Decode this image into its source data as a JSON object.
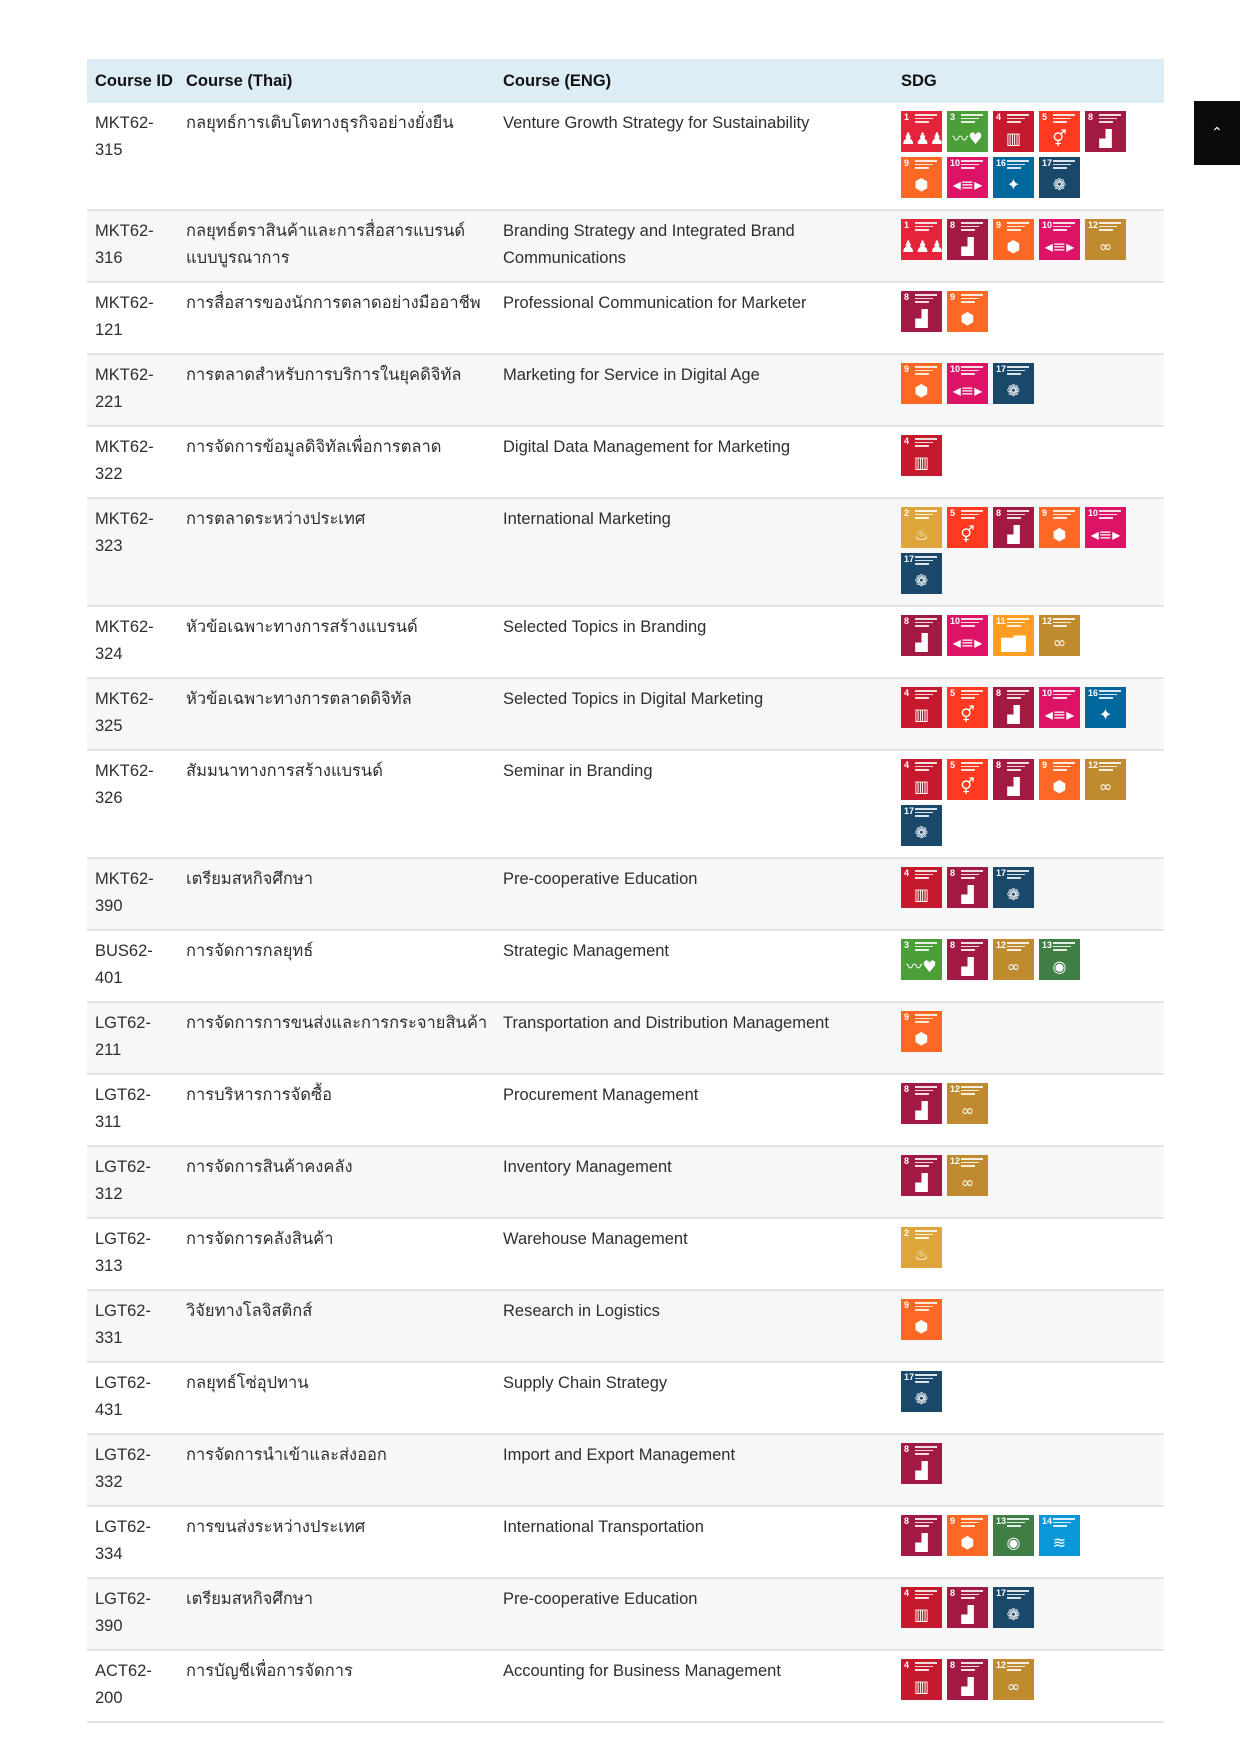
{
  "header": {
    "course_id": "Course ID",
    "course_thai": "Course (Thai)",
    "course_eng": "Course (ENG)",
    "sdg": "SDG"
  },
  "scroll_top": {
    "icon": "chevron-up-icon",
    "glyph": "⌃"
  },
  "sdg_colors": {
    "1": "#e5243b",
    "2": "#dda63a",
    "3": "#4c9f38",
    "4": "#c5192d",
    "5": "#ff3a21",
    "8": "#a21942",
    "9": "#fd6925",
    "10": "#dd1367",
    "11": "#fd9d24",
    "12": "#bf8b2e",
    "13": "#3f7e44",
    "14": "#0a97d9",
    "16": "#00689d",
    "17": "#19486a"
  },
  "sdg_icons": {
    "1": "no-poverty-icon",
    "2": "zero-hunger-icon",
    "3": "good-health-icon",
    "4": "quality-education-icon",
    "5": "gender-equality-icon",
    "8": "decent-work-icon",
    "9": "industry-innovation-icon",
    "10": "reduced-inequalities-icon",
    "11": "sustainable-cities-icon",
    "12": "responsible-consumption-icon",
    "13": "climate-action-icon",
    "14": "life-below-water-icon",
    "16": "peace-justice-icon",
    "17": "partnerships-icon"
  },
  "sdg_glyphs": {
    "1": "♟♟♟",
    "2": "♨",
    "3": "〰♥",
    "4": "▥",
    "5": "⚥",
    "8": "▟",
    "9": "⬢",
    "10": "◂≡▸",
    "11": "▆▇",
    "12": "∞",
    "13": "◉",
    "14": "≋",
    "16": "✦",
    "17": "❁"
  },
  "rows": [
    {
      "id": "MKT62-315",
      "thai": "กลยุทธ์การเติบโตทางธุรกิจอย่างยั่งยืน",
      "eng": "Venture Growth Strategy for Sustainability",
      "sdgs": [
        "1",
        "3",
        "4",
        "5",
        "8",
        "9",
        "10",
        "16",
        "17"
      ]
    },
    {
      "id": "MKT62-316",
      "thai": "กลยุทธ์ตราสินค้าและการสื่อสารแบรนด์แบบบูรณาการ",
      "eng": "Branding Strategy and Integrated Brand Communications",
      "sdgs": [
        "1",
        "8",
        "9",
        "10",
        "12"
      ]
    },
    {
      "id": "MKT62-121",
      "thai": "การสื่อสารของนักการตลาดอย่างมืออาชีพ",
      "eng": "Professional Communication for Marketer",
      "sdgs": [
        "8",
        "9"
      ]
    },
    {
      "id": "MKT62-221",
      "thai": "การตลาดสำหรับการบริการในยุคดิจิทัล",
      "eng": "Marketing for Service in Digital Age",
      "sdgs": [
        "9",
        "10",
        "17"
      ]
    },
    {
      "id": "MKT62-322",
      "thai": "การจัดการข้อมูลดิจิทัลเพื่อการตลาด",
      "eng": "Digital Data Management for Marketing",
      "sdgs": [
        "4"
      ]
    },
    {
      "id": "MKT62-323",
      "thai": "การตลาดระหว่างประเทศ",
      "eng": "International Marketing",
      "sdgs": [
        "2",
        "5",
        "8",
        "9",
        "10",
        "17"
      ]
    },
    {
      "id": "MKT62-324",
      "thai": "หัวข้อเฉพาะทางการสร้างแบรนด์",
      "eng": "Selected Topics in Branding",
      "sdgs": [
        "8",
        "10",
        "11",
        "12"
      ]
    },
    {
      "id": "MKT62-325",
      "thai": "หัวข้อเฉพาะทางการตลาดดิจิทัล",
      "eng": "Selected Topics in Digital Marketing",
      "sdgs": [
        "4",
        "5",
        "8",
        "10",
        "16"
      ]
    },
    {
      "id": "MKT62-326",
      "thai": "สัมมนาทางการสร้างแบรนด์",
      "eng": "Seminar in Branding",
      "sdgs": [
        "4",
        "5",
        "8",
        "9",
        "12",
        "17"
      ]
    },
    {
      "id": "MKT62-390",
      "thai": "เตรียมสหกิจศึกษา",
      "eng": "Pre-cooperative Education",
      "sdgs": [
        "4",
        "8",
        "17"
      ]
    },
    {
      "id": "BUS62-401",
      "thai": "การจัดการกลยุทธ์",
      "eng": "Strategic Management",
      "sdgs": [
        "3",
        "8",
        "12",
        "13"
      ]
    },
    {
      "id": "LGT62-211",
      "thai": "การจัดการการขนส่งและการกระจายสินค้า",
      "eng": "Transportation and Distribution Management",
      "sdgs": [
        "9"
      ]
    },
    {
      "id": "LGT62-311",
      "thai": "การบริหารการจัดซื้อ",
      "eng": "Procurement Management",
      "sdgs": [
        "8",
        "12"
      ]
    },
    {
      "id": "LGT62-312",
      "thai": "การจัดการสินค้าคงคลัง",
      "eng": "Inventory Management",
      "sdgs": [
        "8",
        "12"
      ]
    },
    {
      "id": "LGT62-313",
      "thai": "การจัดการคลังสินค้า",
      "eng": "Warehouse Management",
      "sdgs": [
        "2"
      ]
    },
    {
      "id": "LGT62-331",
      "thai": "วิจัยทางโลจิสติกส์",
      "eng": "Research in Logistics",
      "sdgs": [
        "9"
      ]
    },
    {
      "id": "LGT62-431",
      "thai": "กลยุทธ์โซ่อุปทาน",
      "eng": "Supply Chain Strategy",
      "sdgs": [
        "17"
      ]
    },
    {
      "id": "LGT62-332",
      "thai": "การจัดการนำเข้าและส่งออก",
      "eng": "Import and Export Management",
      "sdgs": [
        "8"
      ]
    },
    {
      "id": "LGT62-334",
      "thai": "การขนส่งระหว่างประเทศ",
      "eng": "International Transportation",
      "sdgs": [
        "8",
        "9",
        "13",
        "14"
      ]
    },
    {
      "id": "LGT62-390",
      "thai": "เตรียมสหกิจศึกษา",
      "eng": "Pre-cooperative Education",
      "sdgs": [
        "4",
        "8",
        "17"
      ]
    },
    {
      "id": "ACT62-200",
      "thai": "การบัญชีเพื่อการจัดการ",
      "eng": "Accounting for Business Management",
      "sdgs": [
        "4",
        "8",
        "12"
      ]
    }
  ]
}
